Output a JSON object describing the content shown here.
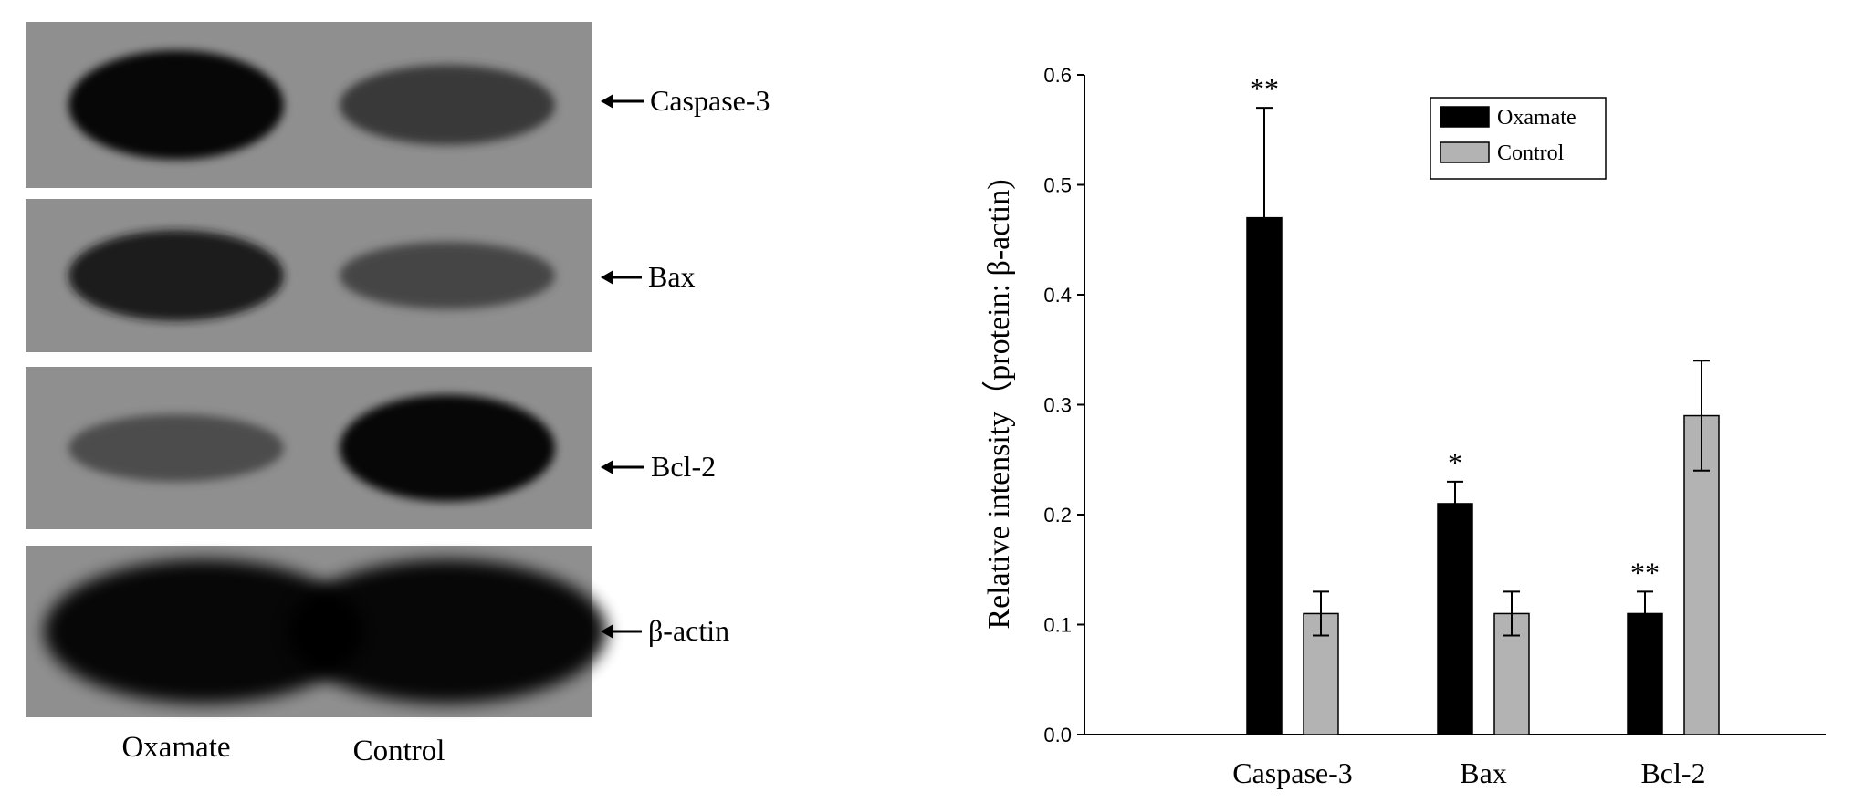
{
  "blot": {
    "bands": [
      {
        "label": "Caspase-3",
        "oxamate_density": 0.95,
        "control_density": 0.55
      },
      {
        "label": "Bax",
        "oxamate_density": 0.8,
        "control_density": 0.45
      },
      {
        "label": "Bcl-2",
        "oxamate_density": 0.4,
        "control_density": 0.95
      },
      {
        "label": "β-actin",
        "oxamate_density": 1.0,
        "control_density": 1.0
      }
    ],
    "lanes": [
      "Oxamate",
      "Control"
    ]
  },
  "chart_data": {
    "type": "bar",
    "categories": [
      "Caspase-3",
      "Bax",
      "Bcl-2"
    ],
    "series": [
      {
        "name": "Oxamate",
        "values": [
          0.47,
          0.21,
          0.11
        ],
        "errors": [
          0.1,
          0.02,
          0.02
        ],
        "significance": [
          "**",
          "*",
          "**"
        ],
        "color": "#000000"
      },
      {
        "name": "Control",
        "values": [
          0.11,
          0.11,
          0.29
        ],
        "errors": [
          0.02,
          0.02,
          0.05
        ],
        "significance": [
          "",
          "",
          ""
        ],
        "color": "#b3b3b3"
      }
    ],
    "title": "",
    "xlabel": "",
    "ylabel": "Relative intensity（protein: β-actin)",
    "ylim": [
      0,
      0.6
    ],
    "yticks": [
      "0.0",
      "0.1",
      "0.2",
      "0.3",
      "0.4",
      "0.5",
      "0.6"
    ],
    "legend_position": "top-right",
    "grid": false
  }
}
